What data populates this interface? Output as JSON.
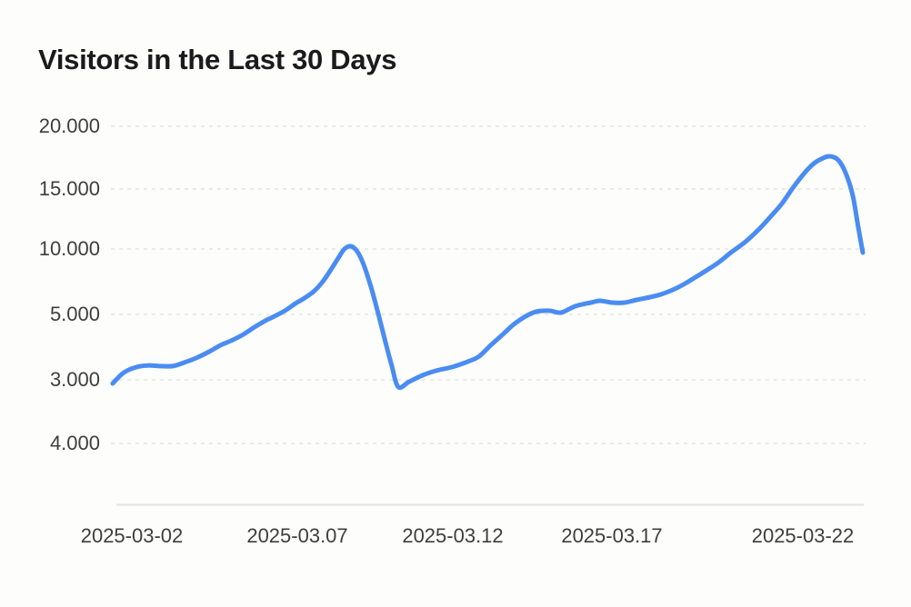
{
  "header": {
    "title": "Visitors in the Last 30 Days"
  },
  "chart_data": {
    "type": "line",
    "title": "Visitors in the Last 30 Days",
    "series_name": "Visitors",
    "x_tick_labels": [
      "2025-03-02",
      "2025-03.07",
      "2025-03.12",
      "2025-03.17",
      "2025-03-22"
    ],
    "y_tick_labels": [
      "20.000",
      "15.000",
      "10.000",
      "5.000",
      "3.000",
      "4.000"
    ],
    "y_tick_values": [
      20000,
      15000,
      10000,
      5000,
      3000,
      4000
    ],
    "legend": "none",
    "grid": "horizontal-dashed",
    "line_color": "#4a8cf2",
    "grid_color": "#e4e4e4",
    "axis_line_color": "#e3e2df",
    "label_color": "#3e3e3e",
    "title_color": "#1b1b1d",
    "points_format": "[days after 2025-03-01, visitors]",
    "points": [
      [
        0.41,
        2890
      ],
      [
        0.75,
        3220
      ],
      [
        1.14,
        3390
      ],
      [
        1.5,
        3440
      ],
      [
        1.87,
        3420
      ],
      [
        2.26,
        3420
      ],
      [
        2.62,
        3530
      ],
      [
        2.99,
        3670
      ],
      [
        3.38,
        3860
      ],
      [
        3.74,
        4060
      ],
      [
        4.11,
        4220
      ],
      [
        4.44,
        4390
      ],
      [
        4.78,
        4610
      ],
      [
        5.12,
        4810
      ],
      [
        5.45,
        4970
      ],
      [
        5.76,
        5350
      ],
      [
        6.04,
        5830
      ],
      [
        6.32,
        6250
      ],
      [
        6.6,
        6740
      ],
      [
        6.88,
        7500
      ],
      [
        7.13,
        8400
      ],
      [
        7.36,
        9310
      ],
      [
        7.55,
        10000
      ],
      [
        7.75,
        10230
      ],
      [
        7.95,
        9790
      ],
      [
        8.14,
        8820
      ],
      [
        8.37,
        7080
      ],
      [
        8.59,
        5070
      ],
      [
        8.81,
        4170
      ],
      [
        9.01,
        3420
      ],
      [
        9.21,
        2780
      ],
      [
        9.54,
        2940
      ],
      [
        9.96,
        3140
      ],
      [
        10.38,
        3280
      ],
      [
        10.86,
        3390
      ],
      [
        11.36,
        3560
      ],
      [
        11.7,
        3720
      ],
      [
        12.06,
        4060
      ],
      [
        12.43,
        4390
      ],
      [
        12.76,
        4690
      ],
      [
        13.13,
        4940
      ],
      [
        13.46,
        5210
      ],
      [
        13.88,
        5280
      ],
      [
        14.22,
        5140
      ],
      [
        14.67,
        5630
      ],
      [
        15.14,
        5900
      ],
      [
        15.42,
        6040
      ],
      [
        15.79,
        5900
      ],
      [
        16.18,
        5900
      ],
      [
        16.55,
        6110
      ],
      [
        16.97,
        6320
      ],
      [
        17.3,
        6530
      ],
      [
        17.67,
        6880
      ],
      [
        18.0,
        7290
      ],
      [
        18.37,
        7850
      ],
      [
        18.73,
        8400
      ],
      [
        19.07,
        8960
      ],
      [
        19.49,
        9790
      ],
      [
        19.91,
        10610
      ],
      [
        20.33,
        11670
      ],
      [
        20.69,
        12730
      ],
      [
        21.03,
        13790
      ],
      [
        21.36,
        15070
      ],
      [
        21.73,
        16300
      ],
      [
        22.01,
        17030
      ],
      [
        22.29,
        17460
      ],
      [
        22.51,
        17610
      ],
      [
        22.76,
        17320
      ],
      [
        22.99,
        16300
      ],
      [
        23.21,
        14470
      ],
      [
        23.38,
        11820
      ],
      [
        23.52,
        9720
      ]
    ]
  }
}
